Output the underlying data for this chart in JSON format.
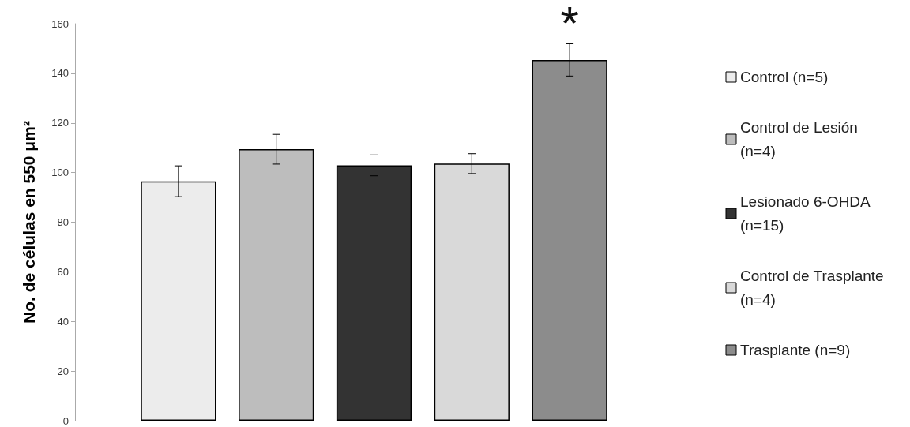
{
  "chart_data": {
    "type": "bar",
    "ylabel": "No. de células en 550 μm²",
    "categories": [
      null
    ],
    "series": [
      {
        "name": "Control (n=5)",
        "color": "#ececec",
        "values": [
          96.5
        ],
        "errors": [
          6.2
        ]
      },
      {
        "name": "Control de Lesión (n=4)",
        "color": "#bdbdbd",
        "values": [
          109.4
        ],
        "errors": [
          6
        ]
      },
      {
        "name": "Lesionado 6-OHDA (n=15)",
        "color": "#333333",
        "values": [
          102.9
        ],
        "errors": [
          4.2
        ]
      },
      {
        "name": "Control de Trasplante  (n=4)",
        "color": "#d9d9d9",
        "values": [
          103.6
        ],
        "errors": [
          4
        ]
      },
      {
        "name": "Trasplante (n=9)",
        "color": "#8c8c8c",
        "values": [
          145.4
        ],
        "errors": [
          6.5
        ]
      }
    ],
    "annotations": [
      "*"
    ],
    "ylim": [
      0,
      160
    ],
    "yticks": [
      0,
      20,
      40,
      60,
      80,
      100,
      120,
      140,
      160
    ],
    "grid": false,
    "legend": "right"
  }
}
